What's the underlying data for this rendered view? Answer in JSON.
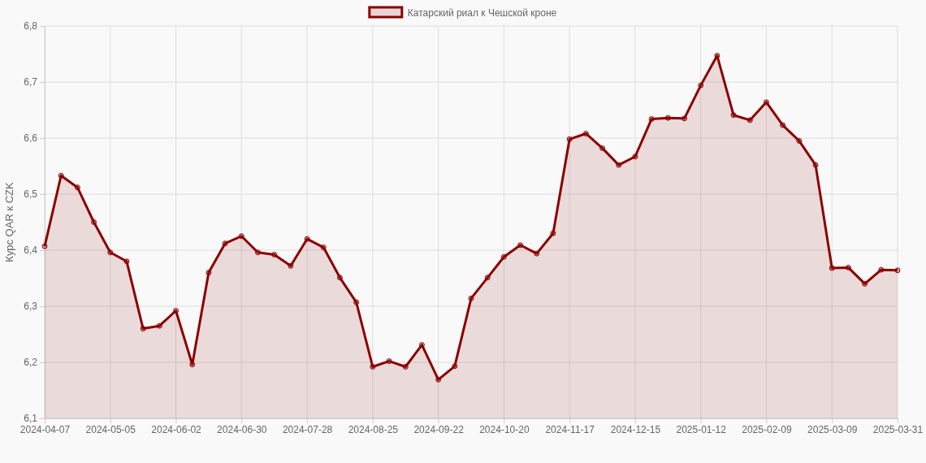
{
  "chart_data": {
    "type": "area",
    "ylabel": "Курс QAR к CZK",
    "categories": [
      "2024-04-07",
      null,
      null,
      null,
      "2024-05-05",
      null,
      null,
      null,
      "2024-06-02",
      null,
      null,
      null,
      "2024-06-30",
      null,
      null,
      null,
      "2024-07-28",
      null,
      null,
      null,
      "2024-08-25",
      null,
      null,
      null,
      "2024-09-22",
      null,
      null,
      null,
      "2024-10-20",
      null,
      null,
      null,
      "2024-11-17",
      null,
      null,
      null,
      "2024-12-15",
      null,
      null,
      null,
      "2025-01-12",
      null,
      null,
      null,
      "2025-02-09",
      null,
      null,
      null,
      "2025-03-09",
      null,
      null,
      null,
      "2025-03-31"
    ],
    "series": [
      {
        "name": "Катарский риал к Чешской кроне",
        "color": "#8b0000",
        "values": [
          6.407,
          6.533,
          6.512,
          6.45,
          6.396,
          6.38,
          6.26,
          6.265,
          6.292,
          6.196,
          6.36,
          6.412,
          6.425,
          6.396,
          6.392,
          6.372,
          6.42,
          6.405,
          6.351,
          6.307,
          6.192,
          6.202,
          6.192,
          6.231,
          6.169,
          6.193,
          6.314,
          6.351,
          6.388,
          6.409,
          6.394,
          6.43,
          6.598,
          6.608,
          6.582,
          6.552,
          6.567,
          6.634,
          6.636,
          6.635,
          6.694,
          6.747,
          6.641,
          6.632,
          6.664,
          6.623,
          6.595,
          6.552,
          6.368,
          6.369,
          6.34,
          6.365,
          6.364
        ]
      }
    ],
    "ylim": [
      6.1,
      6.8
    ],
    "yticks": [
      {
        "value": 6.1,
        "label": "6,1"
      },
      {
        "value": 6.2,
        "label": "6,2"
      },
      {
        "value": 6.3,
        "label": "6,3"
      },
      {
        "value": 6.4,
        "label": "6,4"
      },
      {
        "value": 6.5,
        "label": "6,5"
      },
      {
        "value": 6.6,
        "label": "6,6"
      },
      {
        "value": 6.7,
        "label": "6,7"
      },
      {
        "value": 6.8,
        "label": "6,8"
      }
    ],
    "grid": true,
    "legend": "top",
    "marker": "circle",
    "line_style": "solid"
  }
}
